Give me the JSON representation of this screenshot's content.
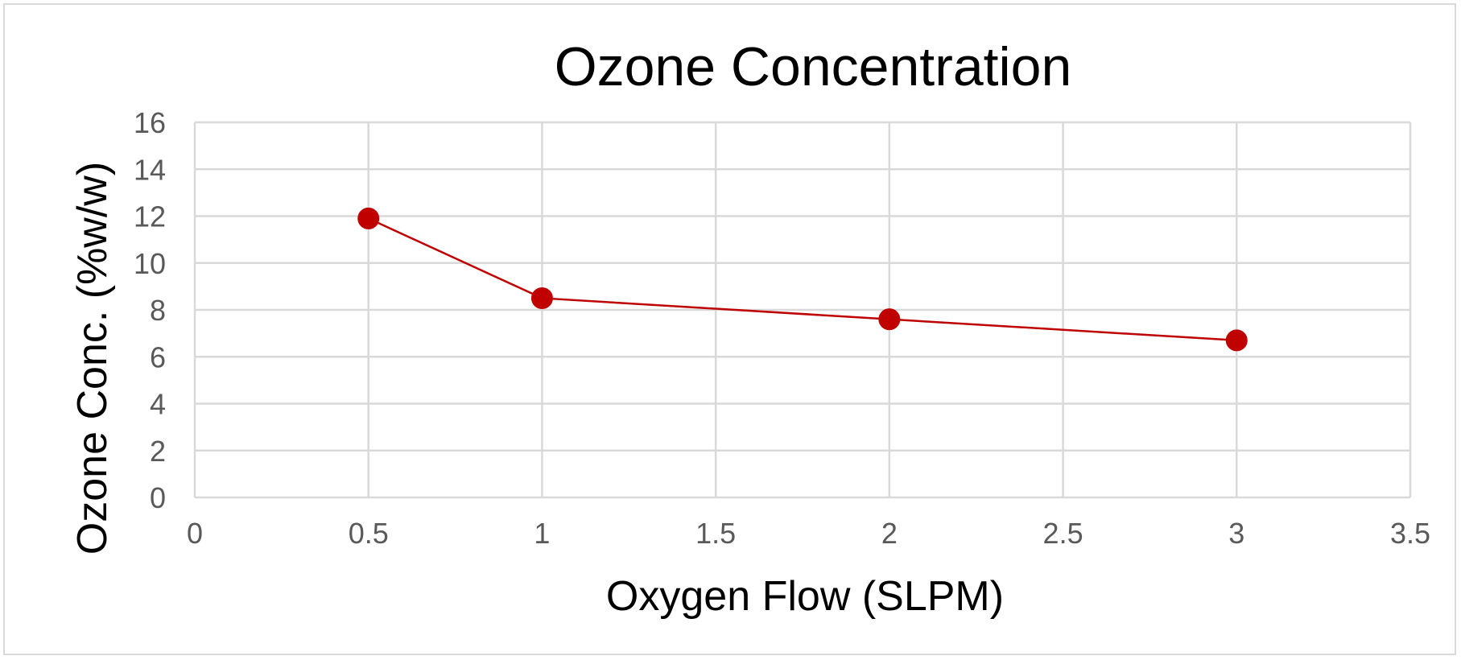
{
  "chart_data": {
    "type": "scatter",
    "title": "Ozone Concentration",
    "xlabel": "Oxygen Flow (SLPM)",
    "ylabel": "Ozone Conc. (%w/w)",
    "xlim": [
      0,
      3.5
    ],
    "ylim": [
      0,
      16
    ],
    "x_ticks": [
      "0",
      "0.5",
      "1",
      "1.5",
      "2",
      "2.5",
      "3",
      "3.5"
    ],
    "y_ticks": [
      "0",
      "2",
      "4",
      "6",
      "8",
      "10",
      "12",
      "14",
      "16"
    ],
    "grid": true,
    "legend": "none",
    "series": [
      {
        "x": [
          0.5,
          1,
          2,
          3
        ],
        "y": [
          11.9,
          8.5,
          7.6,
          6.7
        ],
        "color": "#c00000",
        "marker": "circle",
        "line": "straight"
      }
    ]
  }
}
